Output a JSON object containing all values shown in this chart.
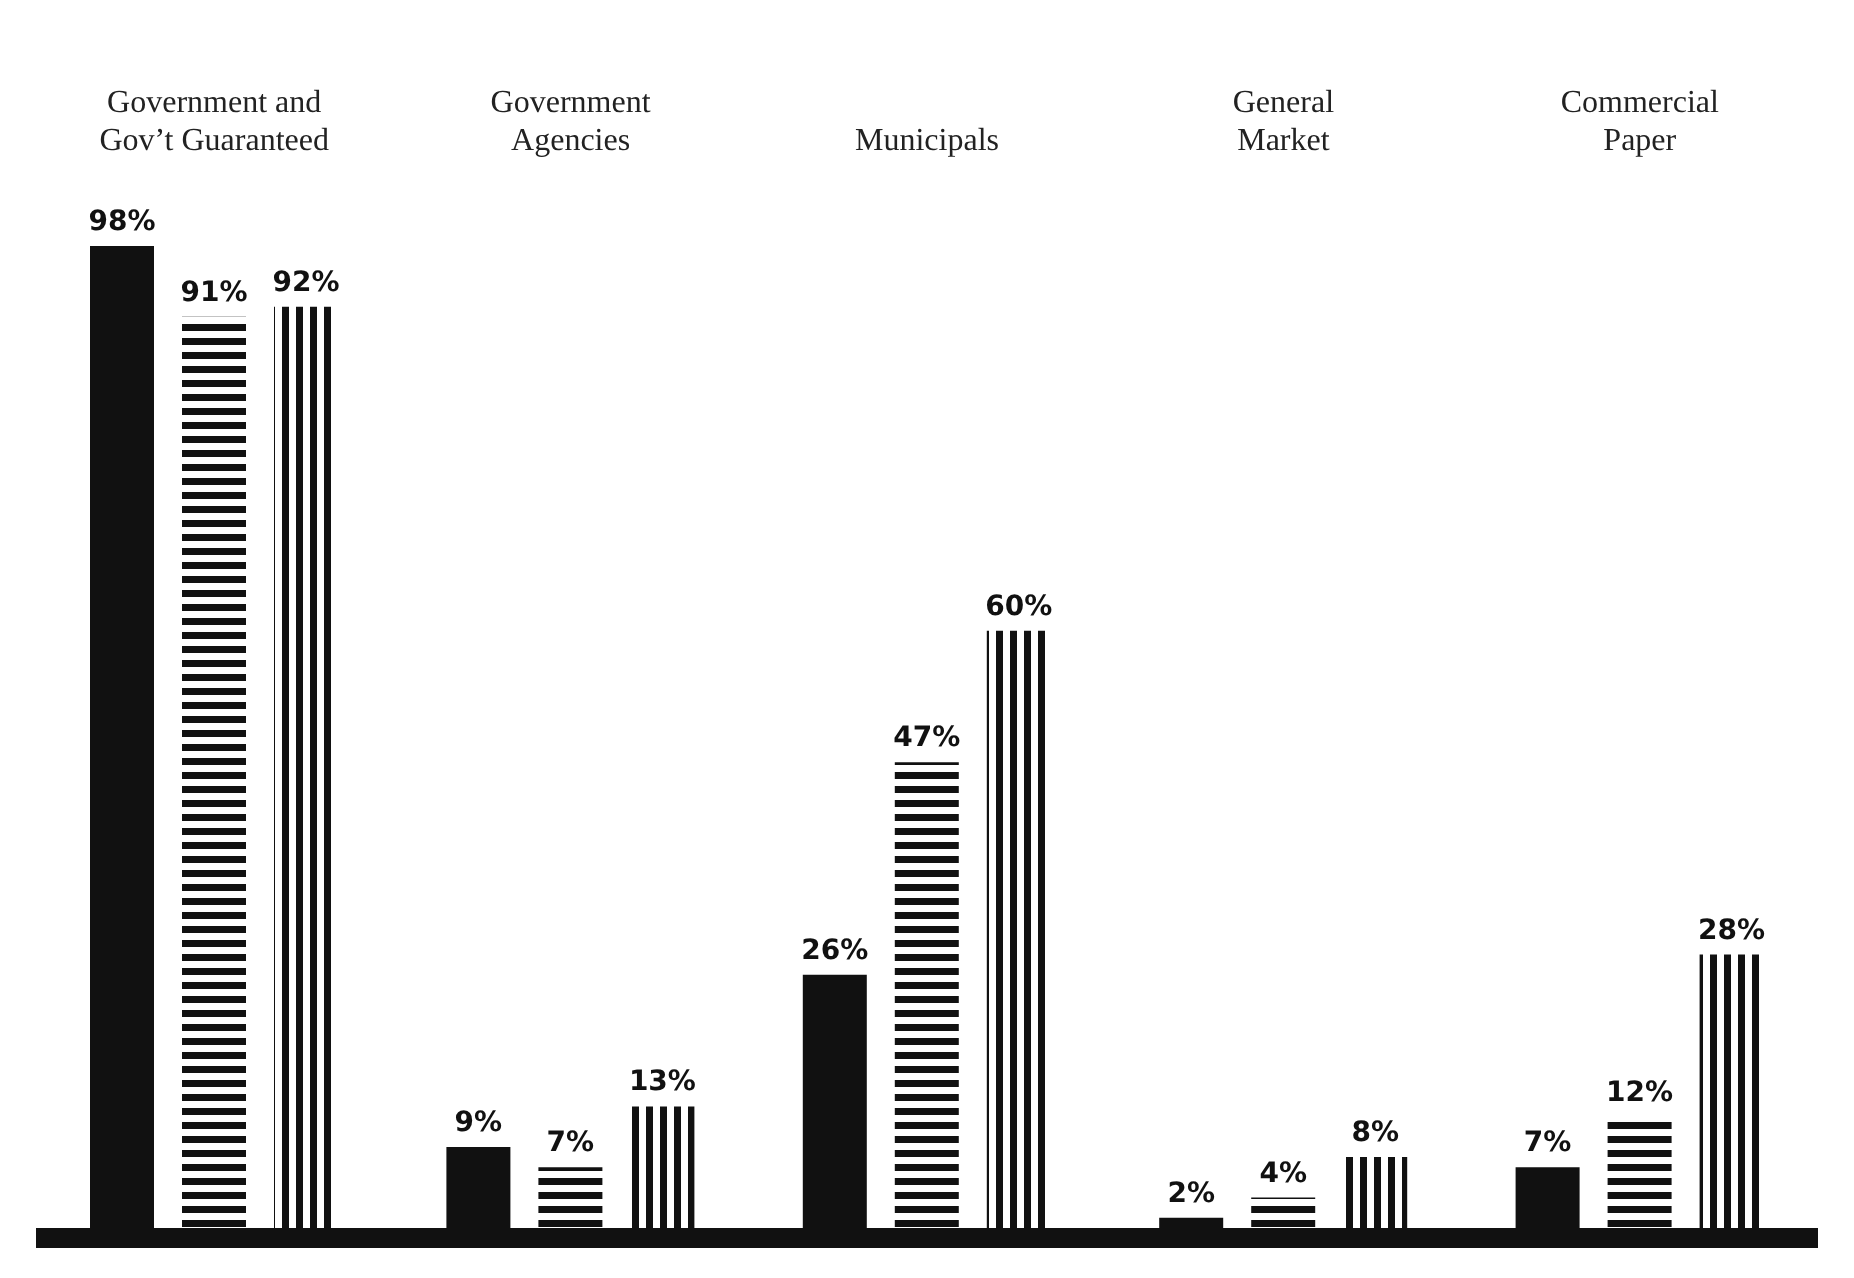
{
  "chart_data": {
    "type": "bar",
    "categories": [
      "Government and\nGov’t Guaranteed",
      "Government\nAgencies",
      "Municipals",
      "General\nMarket",
      "Commercial\nPaper"
    ],
    "series": [
      {
        "color": "#111111",
        "values": [
          98,
          9,
          26,
          2,
          7
        ],
        "value_labels": [
          "98%",
          "9%",
          "26%",
          "2%",
          "7%"
        ]
      },
      {
        "color": "#111111",
        "values": [
          91,
          7,
          47,
          4,
          12
        ],
        "value_labels": [
          "91%",
          "7%",
          "47%",
          "4%",
          "12%"
        ]
      },
      {
        "color": "#111111",
        "values": [
          92,
          13,
          60,
          8,
          28
        ],
        "value_labels": [
          "92%",
          "13%",
          "60%",
          "8%",
          "28%"
        ]
      }
    ],
    "legend": false,
    "grid": false
  }
}
